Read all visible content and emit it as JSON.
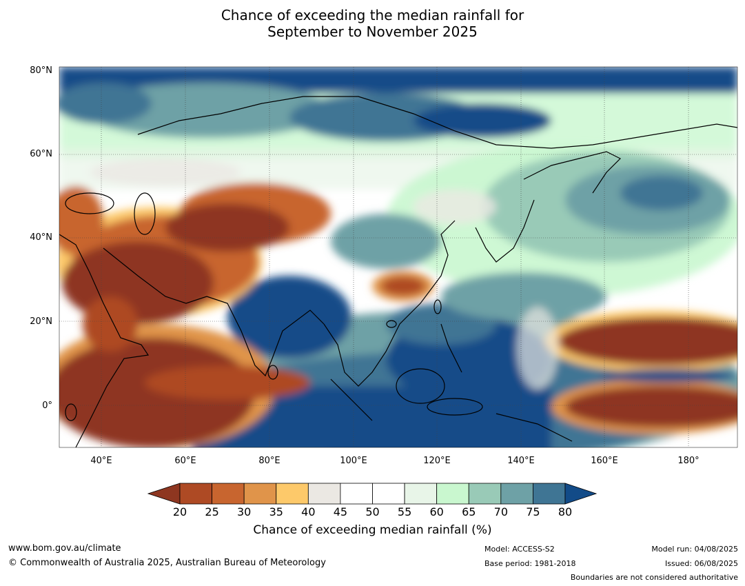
{
  "title": {
    "line1": "Chance of exceeding the median rainfall for",
    "line2": "September to November 2025"
  },
  "lat_labels": [
    "80°N",
    "60°N",
    "40°N",
    "20°N",
    "0°"
  ],
  "lon_labels": [
    "40°E",
    "60°E",
    "80°E",
    "100°E",
    "120°E",
    "140°E",
    "160°E",
    "180°"
  ],
  "colorbar": {
    "title": "Chance of exceeding median rainfall (%)",
    "ticks": [
      "20",
      "25",
      "30",
      "35",
      "40",
      "45",
      "50",
      "55",
      "60",
      "65",
      "70",
      "75",
      "80"
    ],
    "colors": [
      "#8e3620",
      "#ae4a24",
      "#c8652f",
      "#e0944a",
      "#fdc96a",
      "#ebe8e3",
      "#ffffff",
      "#ffffff",
      "#e8f5e8",
      "#c9f7cf",
      "#99cab7",
      "#6ea1a6",
      "#3f7594",
      "#124b88"
    ]
  },
  "footer": {
    "website": "www.bom.gov.au/climate",
    "copyright": "© Commonwealth of Australia 2025, Australian Bureau of Meteorology",
    "model": "Model: ACCESS-S2",
    "base_period": "Base period: 1981-2018",
    "model_run": "Model run: 04/08/2025",
    "issued": "Issued: 06/08/2025",
    "disclaimer": "Boundaries are not considered authoritative"
  },
  "map_extent": {
    "lon_min": 30,
    "lon_max": 190,
    "lat_min": -10,
    "lat_max": 80
  }
}
